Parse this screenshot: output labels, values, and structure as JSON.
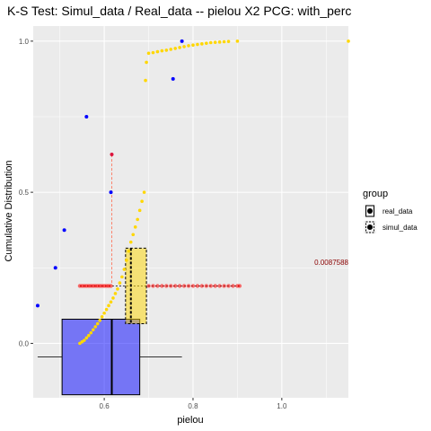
{
  "chart_data": {
    "type": "scatter",
    "title": "K-S Test: Simul_data / Real_data -- pielou X2 PCG: with_perc",
    "xlabel": "pielou",
    "ylabel": "Cumulative Distribution",
    "xlim": [
      0.44,
      1.15
    ],
    "ylim": [
      -0.18,
      1.05
    ],
    "xticks": [
      0.6,
      0.8,
      1.0
    ],
    "xtick_labels": [
      "0.6",
      "0.8",
      "1.0"
    ],
    "yticks": [
      0.0,
      0.5,
      1.0
    ],
    "ytick_labels": [
      "0.0",
      "0.5",
      "1.0"
    ],
    "grid": true,
    "legend": {
      "title": "group",
      "position": "right",
      "entries": [
        {
          "label": "real_data",
          "color": "#0000ff"
        },
        {
          "label": "simul_data",
          "color": "#ffd700"
        }
      ]
    },
    "colors": {
      "real": "#0000ff",
      "simul": "#ffd700",
      "ks": "#ff0000",
      "ks_text": "#8b0000",
      "panel": "#ebebeb",
      "grid": "#ffffff"
    },
    "ks_statistic_label": "0.0087588",
    "series": [
      {
        "name": "real_data",
        "points": [
          [
            0.45,
            0.125
          ],
          [
            0.49,
            0.25
          ],
          [
            0.51,
            0.375
          ],
          [
            0.56,
            0.75
          ],
          [
            0.615,
            0.5
          ],
          [
            0.755,
            0.875
          ],
          [
            0.775,
            1.0
          ]
        ]
      },
      {
        "name": "simul_data",
        "ecdf_points": [
          [
            0.545,
            0.0
          ],
          [
            0.55,
            0.005
          ],
          [
            0.555,
            0.01
          ],
          [
            0.56,
            0.018
          ],
          [
            0.565,
            0.026
          ],
          [
            0.57,
            0.035
          ],
          [
            0.575,
            0.045
          ],
          [
            0.58,
            0.055
          ],
          [
            0.585,
            0.065
          ],
          [
            0.59,
            0.076
          ],
          [
            0.595,
            0.088
          ],
          [
            0.6,
            0.1
          ],
          [
            0.605,
            0.112
          ],
          [
            0.61,
            0.125
          ],
          [
            0.615,
            0.137
          ],
          [
            0.62,
            0.15
          ],
          [
            0.625,
            0.165
          ],
          [
            0.63,
            0.18
          ],
          [
            0.635,
            0.2
          ],
          [
            0.64,
            0.22
          ],
          [
            0.645,
            0.245
          ],
          [
            0.65,
            0.275
          ],
          [
            0.655,
            0.305
          ],
          [
            0.66,
            0.335
          ],
          [
            0.665,
            0.36
          ],
          [
            0.67,
            0.385
          ],
          [
            0.675,
            0.41
          ],
          [
            0.68,
            0.44
          ],
          [
            0.685,
            0.47
          ],
          [
            0.69,
            0.5
          ],
          [
            0.693,
            0.87
          ],
          [
            0.695,
            0.93
          ],
          [
            0.7,
            0.96
          ],
          [
            0.71,
            0.962
          ],
          [
            0.72,
            0.965
          ],
          [
            0.73,
            0.968
          ],
          [
            0.74,
            0.97
          ],
          [
            0.75,
            0.973
          ],
          [
            0.76,
            0.976
          ],
          [
            0.77,
            0.979
          ],
          [
            0.78,
            0.982
          ],
          [
            0.79,
            0.985
          ],
          [
            0.8,
            0.987
          ],
          [
            0.81,
            0.989
          ],
          [
            0.82,
            0.991
          ],
          [
            0.83,
            0.993
          ],
          [
            0.84,
            0.995
          ],
          [
            0.85,
            0.996
          ],
          [
            0.86,
            0.997
          ],
          [
            0.87,
            0.998
          ],
          [
            0.88,
            0.999
          ],
          [
            0.9,
            1.0
          ],
          [
            1.15,
            1.0
          ]
        ]
      }
    ],
    "ks_segments": {
      "vertical": {
        "x": 0.617,
        "y_from": 0.185,
        "y_to": 0.625
      },
      "horizontal": {
        "y": 0.19,
        "x_from": 0.545,
        "x_to": 0.905
      },
      "red_points": [
        0.545,
        0.55,
        0.555,
        0.56,
        0.565,
        0.57,
        0.575,
        0.58,
        0.585,
        0.59,
        0.595,
        0.6,
        0.605,
        0.61,
        0.615,
        0.7,
        0.71,
        0.72,
        0.73,
        0.74,
        0.75,
        0.76,
        0.77,
        0.78,
        0.79,
        0.8,
        0.81,
        0.82,
        0.83,
        0.84,
        0.85,
        0.86,
        0.87,
        0.88,
        0.89,
        0.9,
        0.905
      ]
    },
    "boxplots": {
      "real_data": {
        "min": 0.45,
        "q1": 0.505,
        "median": 0.617,
        "q3": 0.68,
        "max": 0.775,
        "y_center": -0.045,
        "height": 0.25
      },
      "simul_data": {
        "min": 0.645,
        "q1": 0.648,
        "median": 0.66,
        "q3": 0.695,
        "max": 0.695,
        "y_center": 0.19,
        "height": 0.25
      }
    }
  }
}
